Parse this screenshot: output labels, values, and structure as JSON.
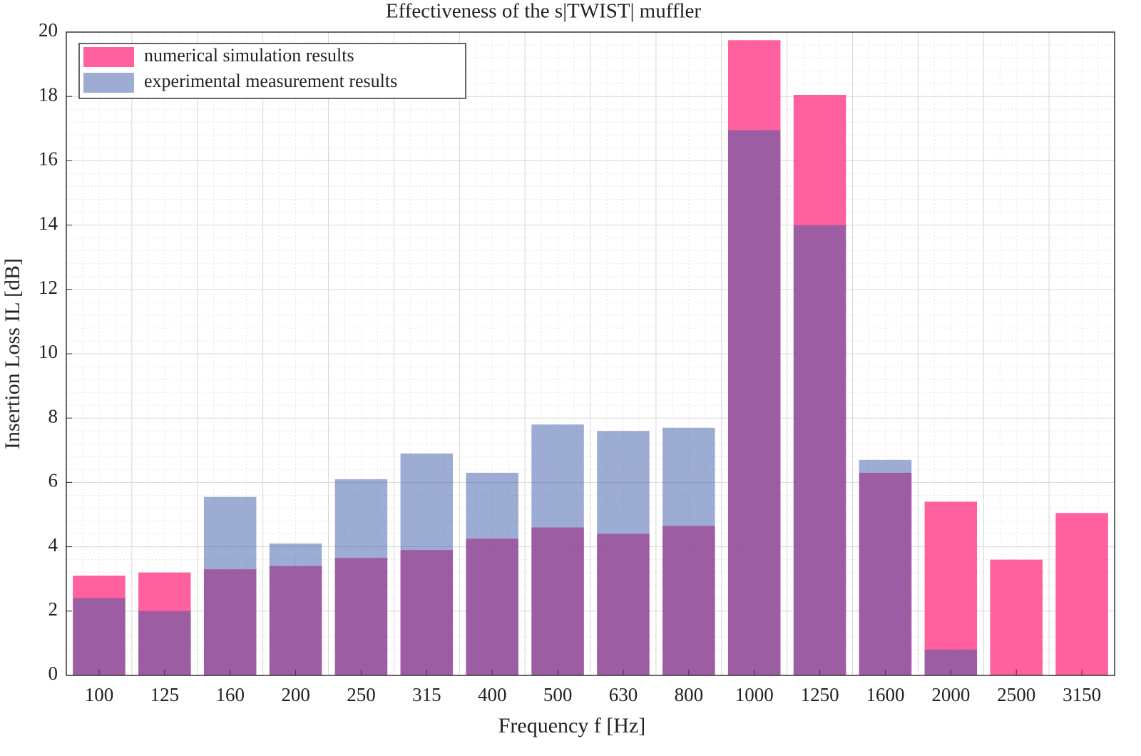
{
  "chart_data": {
    "type": "bar",
    "title": "Effectiveness of the  s|TWIST| muffler",
    "x_label": "Frequency f [Hz]",
    "y_label": "Insertion Loss IL [dB]",
    "categories": [
      "100",
      "125",
      "160",
      "200",
      "250",
      "315",
      "400",
      "500",
      "630",
      "800",
      "1000",
      "1250",
      "1600",
      "2000",
      "2500",
      "3150"
    ],
    "series": [
      {
        "name": "numerical simulation results",
        "color": "#ff4f93",
        "opacity": 0.9,
        "values": [
          3.1,
          3.2,
          3.3,
          3.4,
          3.65,
          3.9,
          4.25,
          4.6,
          4.4,
          4.65,
          19.75,
          18.05,
          6.3,
          5.4,
          3.6,
          5.05
        ]
      },
      {
        "name": "experimental measurement results",
        "color": "#3c5aa6",
        "opacity": 0.5,
        "values": [
          2.4,
          2.0,
          5.55,
          4.1,
          6.1,
          6.9,
          6.3,
          7.8,
          7.6,
          7.7,
          16.95,
          14.0,
          6.7,
          0.8,
          null,
          null
        ]
      }
    ],
    "ylim": [
      0,
      20
    ],
    "yticks": [
      0,
      2,
      4,
      6,
      8,
      10,
      12,
      14,
      16,
      18,
      20
    ],
    "grid": true
  }
}
